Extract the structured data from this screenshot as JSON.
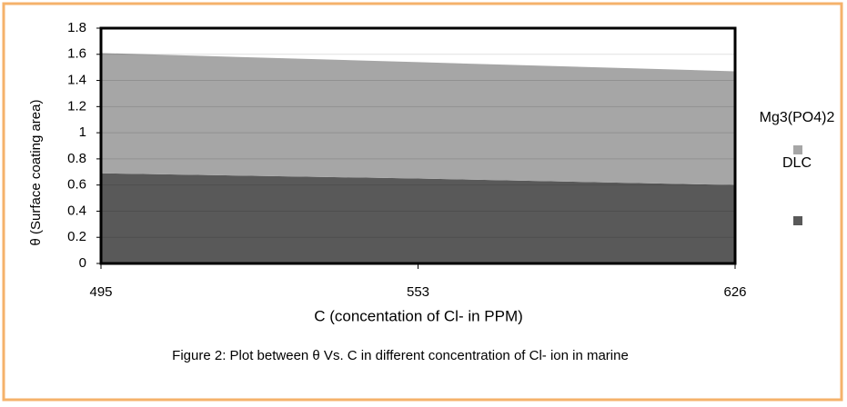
{
  "chart_data": {
    "type": "stacked_area",
    "y_label": "θ (Surface coating area)",
    "x_label": "C (concentation of Cl- in PPM)",
    "caption": "Figure 2: Plot between θ  Vs. C  in different concentration of Cl- ion in marine",
    "categories": [
      "495",
      "553",
      "626"
    ],
    "series": [
      {
        "name": "DLC",
        "color": "#595959",
        "values": [
          0.69,
          0.65,
          0.6
        ]
      },
      {
        "name": "Mg3(PO4)2",
        "color": "#a6a6a6",
        "values": [
          0.92,
          0.89,
          0.87
        ]
      }
    ],
    "ylim": [
      0,
      1.8
    ],
    "yticks": [
      0,
      0.2,
      0.4,
      0.6,
      0.8,
      1,
      1.2,
      1.4,
      1.6,
      1.8
    ],
    "grid": true
  }
}
